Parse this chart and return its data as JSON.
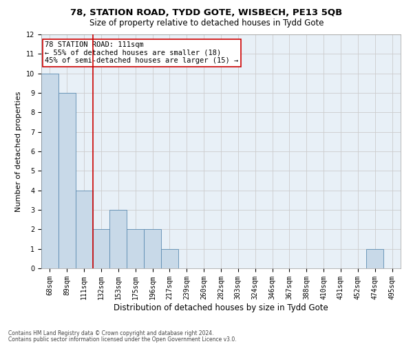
{
  "title1": "78, STATION ROAD, TYDD GOTE, WISBECH, PE13 5QB",
  "title2": "Size of property relative to detached houses in Tydd Gote",
  "xlabel": "Distribution of detached houses by size in Tydd Gote",
  "ylabel": "Number of detached properties",
  "annotation_line1": "78 STATION ROAD: 111sqm",
  "annotation_line2": "← 55% of detached houses are smaller (18)",
  "annotation_line3": "45% of semi-detached houses are larger (15) →",
  "footer1": "Contains HM Land Registry data © Crown copyright and database right 2024.",
  "footer2": "Contains public sector information licensed under the Open Government Licence v3.0.",
  "categories": [
    "68sqm",
    "89sqm",
    "111sqm",
    "132sqm",
    "153sqm",
    "175sqm",
    "196sqm",
    "217sqm",
    "239sqm",
    "260sqm",
    "282sqm",
    "303sqm",
    "324sqm",
    "346sqm",
    "367sqm",
    "388sqm",
    "410sqm",
    "431sqm",
    "452sqm",
    "474sqm",
    "495sqm"
  ],
  "values": [
    10,
    9,
    4,
    2,
    3,
    2,
    2,
    1,
    0,
    0,
    0,
    0,
    0,
    0,
    0,
    0,
    0,
    0,
    0,
    1,
    0
  ],
  "bar_color": "#c8d9e8",
  "bar_edge_color": "#5a8ab0",
  "red_line_x": 2,
  "ylim": [
    0,
    12
  ],
  "yticks": [
    0,
    1,
    2,
    3,
    4,
    5,
    6,
    7,
    8,
    9,
    10,
    11,
    12
  ],
  "background_color": "#ffffff",
  "grid_color": "#cccccc",
  "annotation_box_color": "#ffffff",
  "annotation_box_edge_color": "#cc0000",
  "red_line_color": "#cc0000",
  "title_fontsize": 9.5,
  "subtitle_fontsize": 8.5,
  "axis_label_fontsize": 8,
  "tick_fontsize": 7,
  "annotation_fontsize": 7.5,
  "footer_fontsize": 5.5
}
